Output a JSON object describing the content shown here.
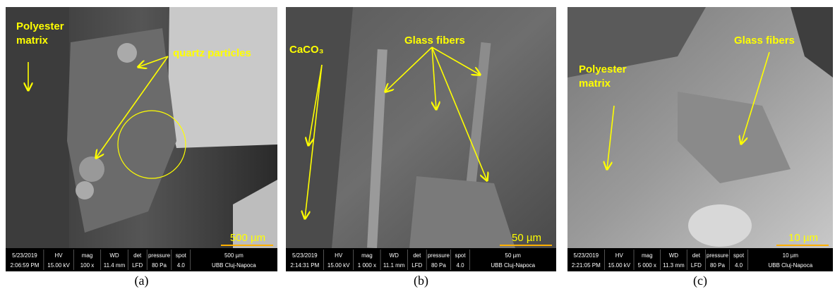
{
  "figure": {
    "databar_headers": [
      "HV",
      "mag",
      "WD",
      "det",
      "pressure",
      "spot"
    ],
    "panels": [
      {
        "caption": "(a)",
        "annotations": [
          {
            "lines": [
              "Polyester",
              "matrix"
            ]
          },
          {
            "lines": [
              "quartz particles"
            ]
          }
        ],
        "scale_label": "500 µm",
        "databar": {
          "date": "5/23/2019",
          "time": "2:06:59 PM",
          "values": [
            "15.00 kV",
            "100 x",
            "11.4 mm",
            "LFD",
            "80 Pa",
            "4.0"
          ],
          "scale": "500 µm",
          "institution": "UBB Cluj-Napoca"
        }
      },
      {
        "caption": "(b)",
        "annotations": [
          {
            "lines": [
              "CaCO₃"
            ]
          },
          {
            "lines": [
              "Glass fibers"
            ]
          }
        ],
        "scale_label": "50 µm",
        "databar": {
          "date": "5/23/2019",
          "time": "2:14:31 PM",
          "values": [
            "15.00 kV",
            "1 000 x",
            "11.1 mm",
            "LFD",
            "80 Pa",
            "4.0"
          ],
          "scale": "50 µm",
          "institution": "UBB Cluj-Napoca"
        }
      },
      {
        "caption": "(c)",
        "annotations": [
          {
            "lines": [
              "Glass fibers"
            ]
          },
          {
            "lines": [
              "Polyester",
              "matrix"
            ]
          }
        ],
        "scale_label": "10 µm",
        "databar": {
          "date": "5/23/2019",
          "time": "2:21:05 PM",
          "values": [
            "15.00 kV",
            "5 000 x",
            "11.3 mm",
            "LFD",
            "80 Pa",
            "4.0"
          ],
          "scale": "10 µm",
          "institution": "UBB Cluj-Napoca"
        }
      }
    ]
  }
}
